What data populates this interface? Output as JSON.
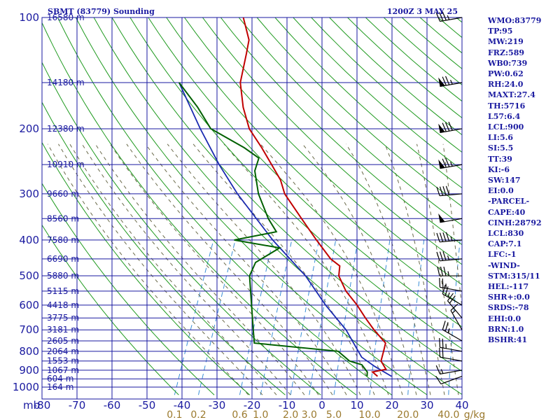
{
  "title": "SBMT (83779) Sounding",
  "datetime": "1200Z  3 MAY 25",
  "colors": {
    "grid": "#1a1aa0",
    "dry_adiabat": "#1f9a1f",
    "moist_adiabat": "#6a6a4a",
    "mixing_ratio": "#3a8fd6",
    "temperature": "#c00000",
    "dewpoint": "#006000",
    "parcel": "#1a2ab0",
    "wind": "#000000",
    "mixing_label": "#9b7a2e"
  },
  "chart_data": {
    "type": "line",
    "pressure_unit_label": "mb",
    "pressure_ticks": [
      100,
      200,
      300,
      400,
      500,
      600,
      700,
      800,
      900,
      1000
    ],
    "temperature_ticks": [
      -80,
      -70,
      -60,
      -50,
      -40,
      -30,
      -20,
      -10,
      0,
      10,
      20,
      30,
      40
    ],
    "mixing_ratio_unit": "g/kg",
    "mixing_ratio_ticks": [
      "0.1",
      "0.2",
      "0.6",
      "1.0",
      "2.0",
      "3.0",
      "5.0",
      "10.0",
      "20.0",
      "40.0"
    ],
    "mixing_ratio_values": [
      0.1,
      0.2,
      0.6,
      1.0,
      2.0,
      3.0,
      5.0,
      10.0,
      20.0,
      40.0
    ],
    "height_labels": [
      {
        "p": 100,
        "text": "16580 m"
      },
      {
        "p": 150,
        "text": "14180 m"
      },
      {
        "p": 200,
        "text": "12380 m"
      },
      {
        "p": 250,
        "text": "10910 m"
      },
      {
        "p": 300,
        "text": "9660 m"
      },
      {
        "p": 350,
        "text": "8560 m"
      },
      {
        "p": 400,
        "text": "7580 m"
      },
      {
        "p": 450,
        "text": "6690 m"
      },
      {
        "p": 500,
        "text": "5880 m"
      },
      {
        "p": 550,
        "text": "5115 m"
      },
      {
        "p": 600,
        "text": "4418 m"
      },
      {
        "p": 650,
        "text": "3775 m"
      },
      {
        "p": 700,
        "text": "3181 m"
      },
      {
        "p": 750,
        "text": "2605 m"
      },
      {
        "p": 800,
        "text": "2064 m"
      },
      {
        "p": 850,
        "text": "1553 m"
      },
      {
        "p": 900,
        "text": "1067 m"
      },
      {
        "p": 950,
        "text": "604 m"
      },
      {
        "p": 1000,
        "text": "164 m"
      }
    ],
    "temperature": [
      {
        "p": 935,
        "t": 14.5
      },
      {
        "p": 910,
        "t": 12.5
      },
      {
        "p": 895,
        "t": 16.0
      },
      {
        "p": 850,
        "t": 13.5
      },
      {
        "p": 800,
        "t": 13.0
      },
      {
        "p": 760,
        "t": 12.5
      },
      {
        "p": 700,
        "t": 7.5
      },
      {
        "p": 650,
        "t": 3.5
      },
      {
        "p": 600,
        "t": -0.5
      },
      {
        "p": 550,
        "t": -5.5
      },
      {
        "p": 500,
        "t": -9.5
      },
      {
        "p": 470,
        "t": -10.5
      },
      {
        "p": 450,
        "t": -14.0
      },
      {
        "p": 400,
        "t": -20.5
      },
      {
        "p": 350,
        "t": -27.5
      },
      {
        "p": 300,
        "t": -35.5
      },
      {
        "p": 275,
        "t": -38.5
      },
      {
        "p": 250,
        "t": -43.0
      },
      {
        "p": 225,
        "t": -48.0
      },
      {
        "p": 200,
        "t": -54.0
      },
      {
        "p": 175,
        "t": -58.5
      },
      {
        "p": 150,
        "t": -62.5
      },
      {
        "p": 125,
        "t": -64.5
      },
      {
        "p": 115,
        "t": -65.5
      },
      {
        "p": 100,
        "t": -70.0
      }
    ],
    "dewpoint": [
      {
        "p": 935,
        "t": 11.5
      },
      {
        "p": 910,
        "t": 11.0
      },
      {
        "p": 870,
        "t": 8.5
      },
      {
        "p": 850,
        "t": 4.5
      },
      {
        "p": 800,
        "t": 0.0
      },
      {
        "p": 760,
        "t": -25.0
      },
      {
        "p": 700,
        "t": -27.0
      },
      {
        "p": 500,
        "t": -35.0
      },
      {
        "p": 460,
        "t": -35.0
      },
      {
        "p": 420,
        "t": -30.0
      },
      {
        "p": 400,
        "t": -44.0
      },
      {
        "p": 380,
        "t": -33.0
      },
      {
        "p": 350,
        "t": -37.0
      },
      {
        "p": 300,
        "t": -43.0
      },
      {
        "p": 260,
        "t": -47.0
      },
      {
        "p": 240,
        "t": -47.5
      },
      {
        "p": 225,
        "t": -53.0
      },
      {
        "p": 200,
        "t": -65.0
      },
      {
        "p": 175,
        "t": -71.5
      },
      {
        "p": 150,
        "t": -80.0
      }
    ],
    "parcel": [
      {
        "p": 935,
        "t": 18.5
      },
      {
        "p": 880,
        "t": 12.5
      },
      {
        "p": 830,
        "t": 7.5
      },
      {
        "p": 700,
        "t": -0.5
      },
      {
        "p": 600,
        "t": -9.5
      },
      {
        "p": 500,
        "t": -19.0
      },
      {
        "p": 400,
        "t": -33.0
      },
      {
        "p": 300,
        "t": -49.0
      },
      {
        "p": 250,
        "t": -58.0
      },
      {
        "p": 200,
        "t": -68.0
      },
      {
        "p": 150,
        "t": -80.0
      }
    ],
    "wind_barbs": [
      {
        "p": 100,
        "dir": 260,
        "kt": 35
      },
      {
        "p": 150,
        "dir": 260,
        "kt": 75
      },
      {
        "p": 200,
        "dir": 260,
        "kt": 80
      },
      {
        "p": 250,
        "dir": 260,
        "kt": 75
      },
      {
        "p": 300,
        "dir": 265,
        "kt": 40
      },
      {
        "p": 350,
        "dir": 260,
        "kt": 50
      },
      {
        "p": 400,
        "dir": 265,
        "kt": 45
      },
      {
        "p": 450,
        "dir": 265,
        "kt": 35
      },
      {
        "p": 500,
        "dir": 270,
        "kt": 35
      },
      {
        "p": 550,
        "dir": 280,
        "kt": 25
      },
      {
        "p": 600,
        "dir": 300,
        "kt": 25
      },
      {
        "p": 650,
        "dir": 320,
        "kt": 20
      },
      {
        "p": 700,
        "dir": 330,
        "kt": 15
      },
      {
        "p": 750,
        "dir": 300,
        "kt": 25
      },
      {
        "p": 800,
        "dir": 280,
        "kt": 25
      },
      {
        "p": 850,
        "dir": 280,
        "kt": 20
      },
      {
        "p": 900,
        "dir": 260,
        "kt": 15
      },
      {
        "p": 935,
        "dir": 250,
        "kt": 10
      }
    ]
  },
  "params": [
    "WMO:83779",
    "TP:95",
    "MW:219",
    "FRZ:589",
    "WB0:739",
    "PW:0.62",
    "RH:24.0",
    "MAXT:27.4",
    "TH:5716",
    "L57:6.4",
    "LCL:900",
    "LI:5.6",
    "SI:5.5",
    "TT:39",
    "KI:-6",
    "SW:147",
    "EI:0.0",
    "-PARCEL-",
    "CAPE:40",
    "CINH:28792",
    "LCL:830",
    "CAP:7.1",
    "LFC:-1",
    "-WIND-",
    "STM:315/11",
    "HEL:-117",
    "SHR+:0.0",
    "SRDS:-78",
    "EHI:0.0",
    "BRN:1.0",
    "BSHR:41"
  ]
}
